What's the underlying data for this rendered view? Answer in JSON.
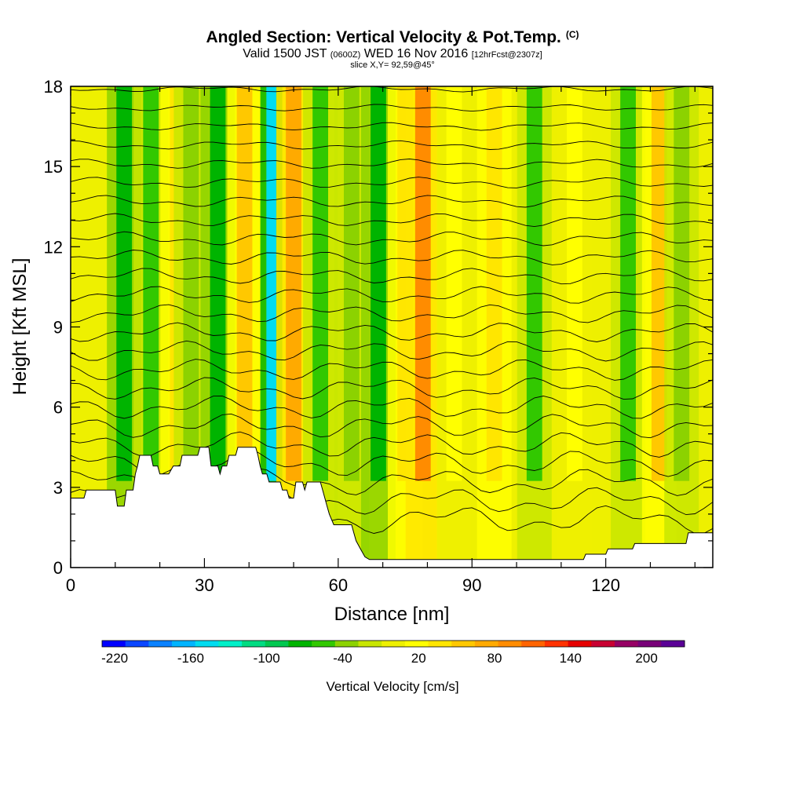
{
  "header": {
    "title": "Angled Section: Vertical Velocity & Pot.Temp.",
    "title_unit": "(C)",
    "valid_prefix": "Valid 1500 JST",
    "valid_utc": "(0600Z)",
    "valid_date": "WED 16 Nov 2016",
    "forecast": "[12hrFcst@2307z]",
    "slice": "slice X,Y= 92,59@45°"
  },
  "chart_data": {
    "type": "heatmap",
    "title": "Angled Section: Vertical Velocity & Pot.Temp. (C)",
    "xlabel": "Distance [nm]",
    "ylabel": "Height [Kft MSL]",
    "xlim": [
      0,
      144
    ],
    "ylim": [
      0,
      18
    ],
    "x_ticks": [
      "0",
      "30",
      "60",
      "90",
      "120"
    ],
    "y_ticks": [
      "0",
      "3",
      "6",
      "9",
      "12",
      "15",
      "18"
    ],
    "x_tick_values": [
      0,
      30,
      60,
      90,
      120
    ],
    "y_tick_values": [
      0,
      3,
      6,
      9,
      12,
      15,
      18
    ],
    "colorbar": {
      "label": "Vertical Velocity [cm/s]",
      "tick_labels": [
        "-220",
        "-160",
        "-100",
        "-40",
        "20",
        "80",
        "140",
        "200"
      ],
      "tick_values": [
        -220,
        -160,
        -100,
        -40,
        20,
        80,
        140,
        200
      ],
      "range": [
        -230,
        230
      ],
      "colors": [
        "#0000ff",
        "#0a46ff",
        "#0a82ff",
        "#00b4ff",
        "#00dcf0",
        "#00f0c8",
        "#00dc82",
        "#00c850",
        "#00b400",
        "#32c800",
        "#8cd200",
        "#c8e600",
        "#eef000",
        "#ffff00",
        "#ffe600",
        "#ffc800",
        "#ffaa00",
        "#ff8c00",
        "#ff6400",
        "#ff3200",
        "#e60000",
        "#c80032",
        "#960064",
        "#780078",
        "#5a0096"
      ]
    },
    "field_columns": [
      {
        "x": 12,
        "w": -70
      },
      {
        "x": 18,
        "w": -60
      },
      {
        "x": 24,
        "w": 40
      },
      {
        "x": 27,
        "w": -40
      },
      {
        "x": 33,
        "w": -80
      },
      {
        "x": 39,
        "w": 50
      },
      {
        "x": 45,
        "w": -150
      },
      {
        "x": 50,
        "w": 70
      },
      {
        "x": 56,
        "w": -60
      },
      {
        "x": 63,
        "w": -40
      },
      {
        "x": 69,
        "w": -80
      },
      {
        "x": 75,
        "w": 30
      },
      {
        "x": 79,
        "w": 100
      },
      {
        "x": 86,
        "w": 20
      },
      {
        "x": 95,
        "w": 30
      },
      {
        "x": 104,
        "w": -50
      },
      {
        "x": 113,
        "w": 20
      },
      {
        "x": 125,
        "w": -60
      },
      {
        "x": 132,
        "w": 60
      },
      {
        "x": 137,
        "w": -30
      }
    ],
    "terrain_kft": [
      [
        0,
        2.6
      ],
      [
        3,
        2.6
      ],
      [
        3.5,
        2.9
      ],
      [
        10,
        2.9
      ],
      [
        10.5,
        2.3
      ],
      [
        12,
        2.3
      ],
      [
        12.5,
        2.9
      ],
      [
        14,
        2.9
      ],
      [
        14.5,
        3.5
      ],
      [
        15,
        3.8
      ],
      [
        15.5,
        4.2
      ],
      [
        18,
        4.2
      ],
      [
        18.5,
        3.8
      ],
      [
        19.5,
        3.8
      ],
      [
        20,
        3.5
      ],
      [
        22,
        3.5
      ],
      [
        23,
        3.8
      ],
      [
        24.5,
        3.8
      ],
      [
        25,
        4.2
      ],
      [
        28.5,
        4.2
      ],
      [
        29,
        4.5
      ],
      [
        31,
        4.5
      ],
      [
        31.5,
        3.8
      ],
      [
        33,
        3.8
      ],
      [
        33.5,
        3.5
      ],
      [
        34,
        3.8
      ],
      [
        35,
        3.8
      ],
      [
        35.5,
        4.2
      ],
      [
        37,
        4.2
      ],
      [
        37.5,
        4.5
      ],
      [
        41.5,
        4.5
      ],
      [
        42,
        4.2
      ],
      [
        42.5,
        3.8
      ],
      [
        43,
        3.5
      ],
      [
        44,
        3.5
      ],
      [
        44.5,
        3.2
      ],
      [
        47,
        3.2
      ],
      [
        47.5,
        2.9
      ],
      [
        48.5,
        2.9
      ],
      [
        49,
        2.6
      ],
      [
        50,
        2.6
      ],
      [
        50.5,
        3.2
      ],
      [
        52,
        3.2
      ],
      [
        52.5,
        2.9
      ],
      [
        53,
        3.2
      ],
      [
        56,
        3.2
      ],
      [
        56.5,
        2.9
      ],
      [
        57,
        2.6
      ],
      [
        57.5,
        2.3
      ],
      [
        58,
        2.0
      ],
      [
        59,
        1.6
      ],
      [
        63,
        1.6
      ],
      [
        63.5,
        1.3
      ],
      [
        64,
        1.0
      ],
      [
        65,
        0.7
      ],
      [
        66,
        0.4
      ],
      [
        67,
        0.3
      ],
      [
        115,
        0.3
      ],
      [
        115.5,
        0.5
      ],
      [
        120,
        0.5
      ],
      [
        120.5,
        0.7
      ],
      [
        126,
        0.7
      ],
      [
        126.5,
        0.9
      ],
      [
        138,
        0.9
      ],
      [
        138.5,
        1.3
      ],
      [
        144,
        1.3
      ]
    ],
    "theta_contour_base_kft": [
      1.8,
      2.5,
      3.2,
      3.9,
      4.6,
      5.3,
      6.0,
      6.7,
      7.4,
      8.1,
      8.8,
      9.5,
      10.2,
      10.9,
      11.6,
      12.3,
      13.0,
      13.7,
      14.4,
      15.1,
      15.8,
      16.5,
      17.2,
      17.9
    ]
  }
}
